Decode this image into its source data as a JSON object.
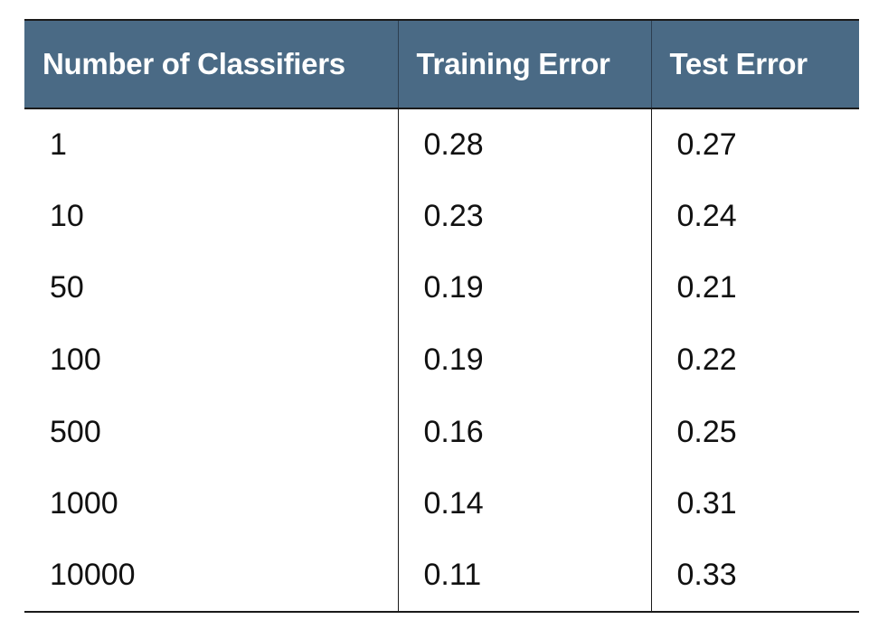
{
  "table": {
    "headers": [
      "Number of Classifiers",
      "Training Error",
      "Test Error"
    ],
    "rows": [
      [
        "1",
        "0.28",
        "0.27"
      ],
      [
        "10",
        "0.23",
        "0.24"
      ],
      [
        "50",
        "0.19",
        "0.21"
      ],
      [
        "100",
        "0.19",
        "0.22"
      ],
      [
        "500",
        "0.16",
        "0.25"
      ],
      [
        "1000",
        "0.14",
        "0.31"
      ],
      [
        "10000",
        "0.11",
        "0.33"
      ]
    ]
  },
  "colors": {
    "header_bg": "#4a6a85",
    "header_text": "#ffffff",
    "body_text": "#111111",
    "rule": "#1a1a1a"
  }
}
